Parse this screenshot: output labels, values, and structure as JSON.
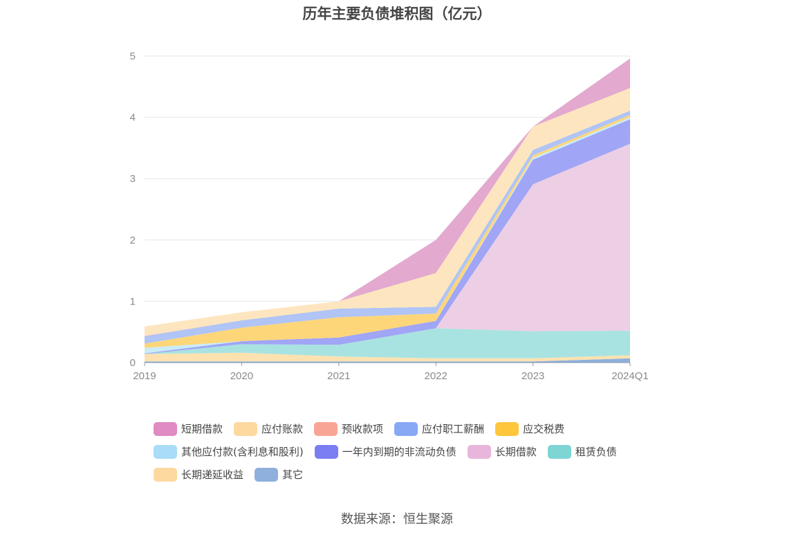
{
  "title": "历年主要负债堆积图（亿元）",
  "source": "数据来源：恒生聚源",
  "chart_data": {
    "type": "area",
    "stacked": true,
    "title": "历年主要负债堆积图（亿元）",
    "categories": [
      "2019",
      "2020",
      "2021",
      "2022",
      "2023",
      "2024Q1"
    ],
    "ylim": [
      0,
      5
    ],
    "yticks": [
      "0",
      "1",
      "2",
      "3",
      "4",
      "5"
    ],
    "grid": true,
    "legend_position": "bottom",
    "series": [
      {
        "name": "其它",
        "color": "#8fb0dd",
        "values": [
          0.02,
          0.02,
          0.02,
          0.02,
          0.02,
          0.07
        ]
      },
      {
        "name": "长期递延收益",
        "color": "#fde2b0",
        "values": [
          0.12,
          0.14,
          0.08,
          0.05,
          0.05,
          0.05
        ]
      },
      {
        "name": "租赁负债",
        "color": "#a9e3e1",
        "values": [
          0.0,
          0.14,
          0.19,
          0.49,
          0.44,
          0.4
        ]
      },
      {
        "name": "长期借款",
        "color": "#eccfe4",
        "values": [
          0.0,
          0.0,
          0.0,
          0.0,
          2.4,
          3.05
        ]
      },
      {
        "name": "一年内到期的非流动负债",
        "color": "#a0a5f5",
        "values": [
          0.01,
          0.05,
          0.12,
          0.12,
          0.4,
          0.4
        ]
      },
      {
        "name": "其他应付款(含利息和股利)",
        "color": "#c9ecf8",
        "values": [
          0.09,
          0.0,
          0.0,
          0.0,
          0.03,
          0.03
        ]
      },
      {
        "name": "应交税费",
        "color": "#fdd67a",
        "values": [
          0.07,
          0.22,
          0.33,
          0.12,
          0.04,
          0.04
        ]
      },
      {
        "name": "应付职工薪酬",
        "color": "#b0c4f5",
        "values": [
          0.12,
          0.12,
          0.14,
          0.11,
          0.09,
          0.07
        ]
      },
      {
        "name": "预收款项",
        "color": "#f9c7bd",
        "values": [
          0.01,
          0.0,
          0.0,
          0.0,
          0.0,
          0.0
        ]
      },
      {
        "name": "应付账款",
        "color": "#fde6bf",
        "values": [
          0.15,
          0.13,
          0.12,
          0.55,
          0.38,
          0.37
        ]
      },
      {
        "name": "短期借款",
        "color": "#e3a9cf",
        "values": [
          0.0,
          0.0,
          0.0,
          0.54,
          0.0,
          0.48
        ]
      }
    ]
  },
  "legend": [
    {
      "label": "短期借款",
      "color": "#e08bc1"
    },
    {
      "label": "应付账款",
      "color": "#fdd9a0"
    },
    {
      "label": "预收款项",
      "color": "#f9a595"
    },
    {
      "label": "应付职工薪酬",
      "color": "#87a8f5"
    },
    {
      "label": "应交税费",
      "color": "#fdc63c"
    },
    {
      "label": "其他应付款(含利息和股利)",
      "color": "#a8dcf7"
    },
    {
      "label": "一年内到期的非流动负债",
      "color": "#7b7ef0"
    },
    {
      "label": "长期借款",
      "color": "#e8b6db"
    },
    {
      "label": "租赁负债",
      "color": "#7fd4d4"
    },
    {
      "label": "长期递延收益",
      "color": "#fdd9a0"
    },
    {
      "label": "其它",
      "color": "#8fb0dd"
    }
  ]
}
